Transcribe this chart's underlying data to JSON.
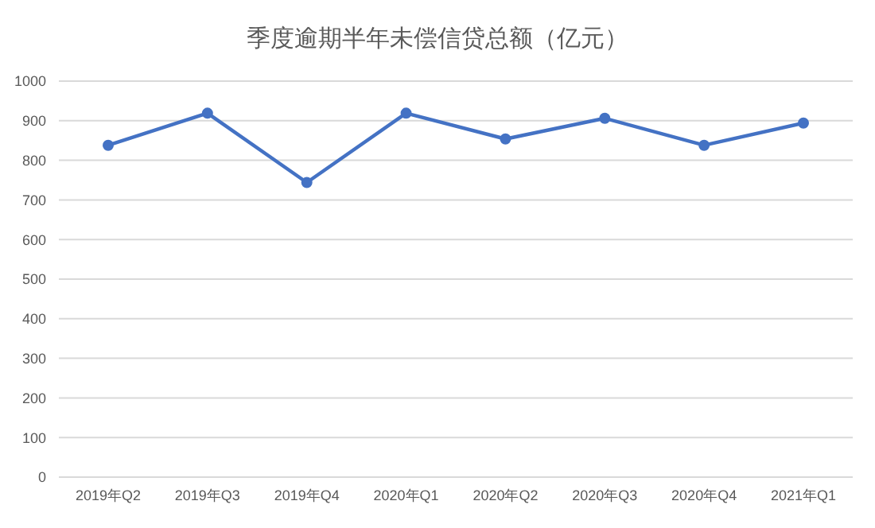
{
  "chart_data": {
    "type": "line",
    "title": "季度逾期半年未偿信贷总额（亿元）",
    "categories": [
      "2019年Q2",
      "2019年Q3",
      "2019年Q4",
      "2020年Q1",
      "2020年Q2",
      "2020年Q3",
      "2020年Q4",
      "2021年Q1"
    ],
    "series": [
      {
        "color": "#4472c4",
        "values": [
          838,
          919,
          744,
          919,
          854,
          906,
          838,
          894
        ]
      }
    ],
    "ylim": [
      0,
      1000
    ],
    "yticks": [
      0,
      100,
      200,
      300,
      400,
      500,
      600,
      700,
      800,
      900,
      1000
    ],
    "grid": "y",
    "marker": "circle",
    "legend": false
  }
}
